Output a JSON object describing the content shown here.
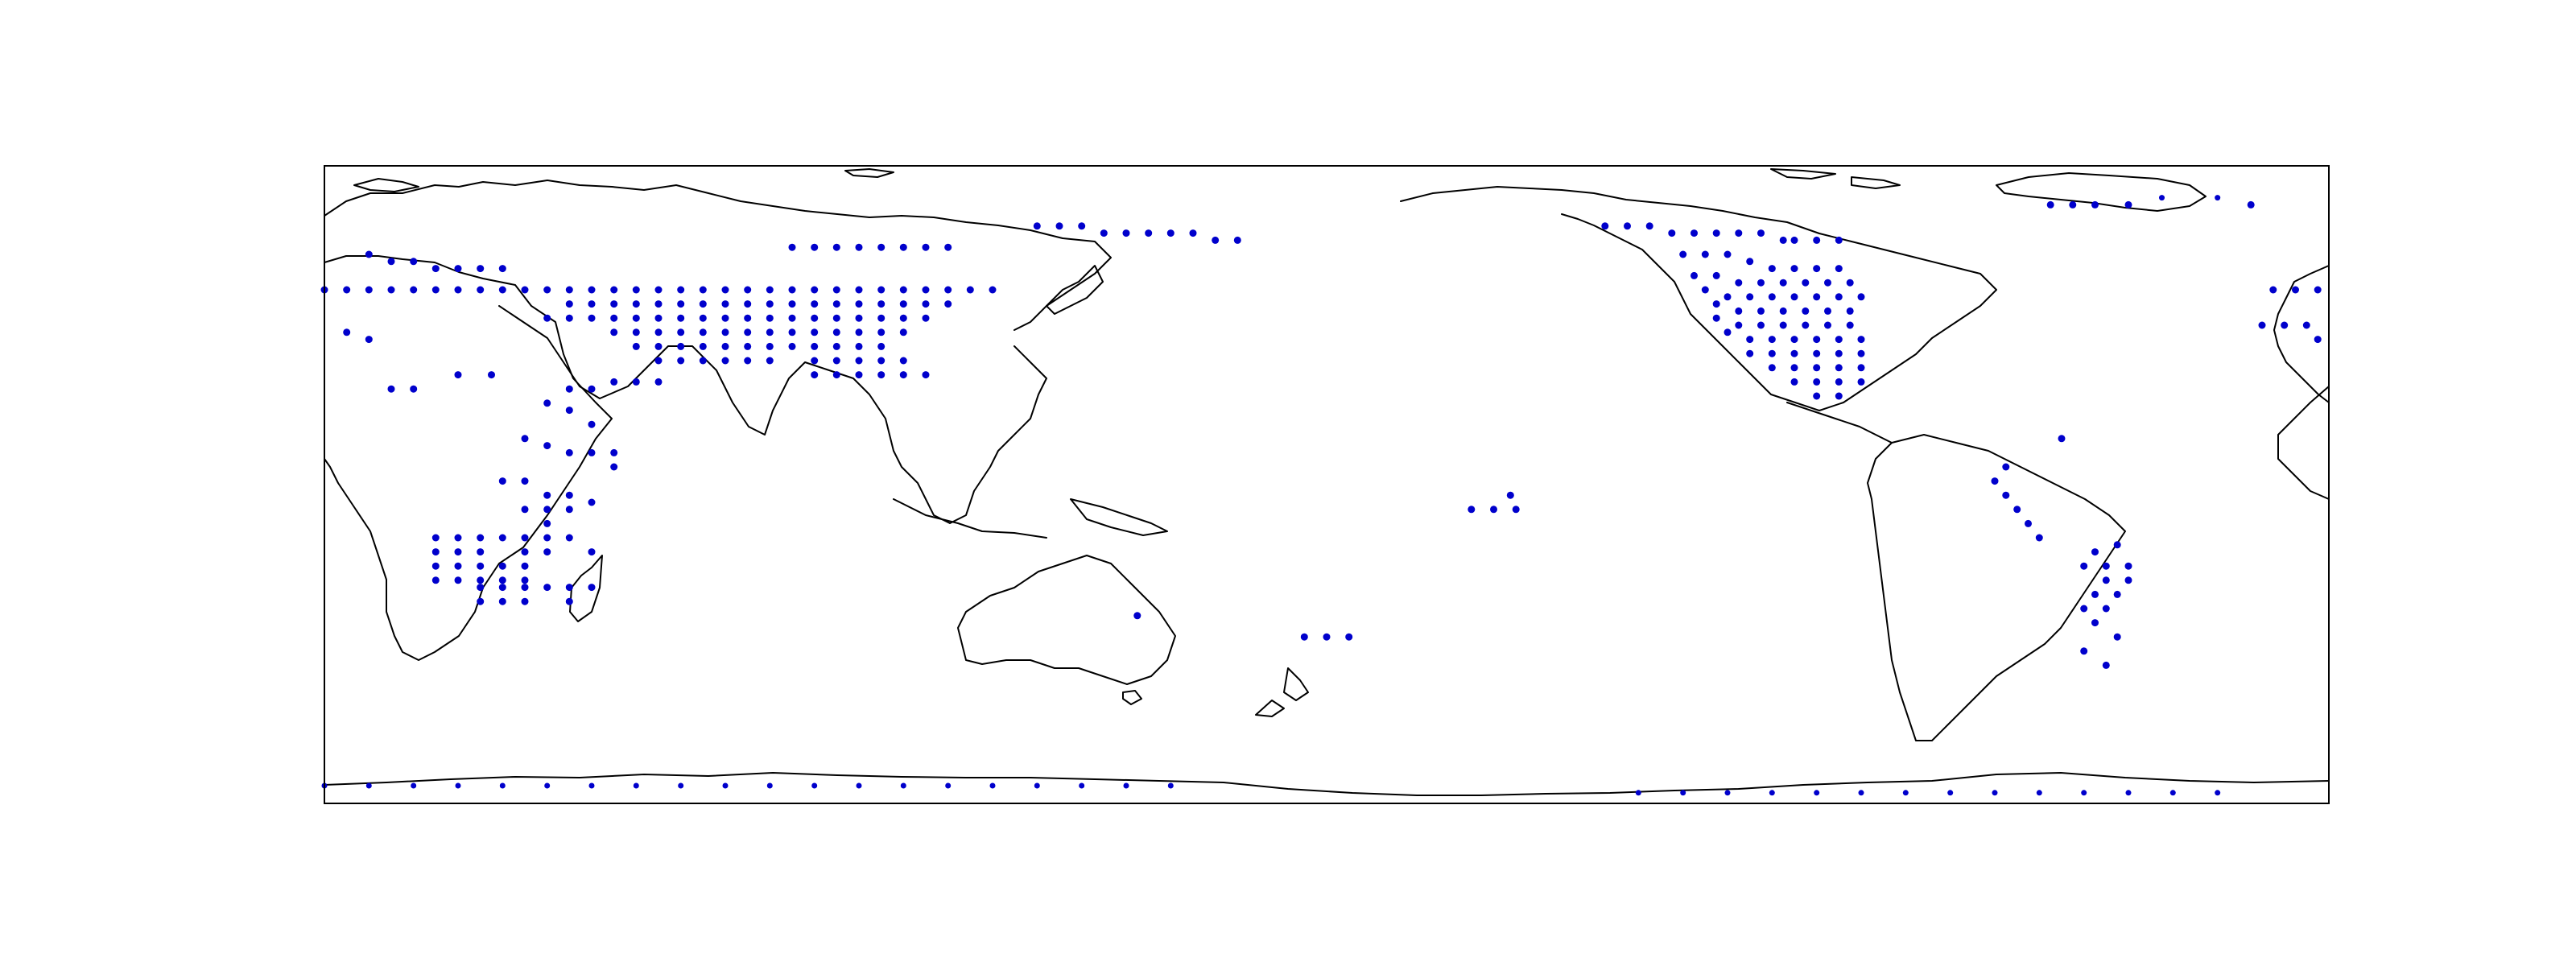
{
  "map": {
    "projection": "plate-carree",
    "central_longitude": 180,
    "lon_range": [
      0,
      360
    ],
    "lat_range": [
      -90,
      90
    ],
    "marker_color": "#0000cc",
    "coastline_color": "#000000",
    "frame_color": "#000000",
    "marker_shape": "filled-circle"
  },
  "points": [
    [
      8,
      65
    ],
    [
      12,
      63
    ],
    [
      16,
      63
    ],
    [
      20,
      61
    ],
    [
      24,
      61
    ],
    [
      28,
      61
    ],
    [
      32,
      61
    ],
    [
      0,
      55
    ],
    [
      4,
      55
    ],
    [
      8,
      55
    ],
    [
      12,
      55
    ],
    [
      16,
      55
    ],
    [
      20,
      55
    ],
    [
      24,
      55
    ],
    [
      28,
      55
    ],
    [
      32,
      55
    ],
    [
      36,
      55
    ],
    [
      40,
      55
    ],
    [
      44,
      55
    ],
    [
      48,
      55
    ],
    [
      52,
      55
    ],
    [
      56,
      55
    ],
    [
      60,
      55
    ],
    [
      64,
      55
    ],
    [
      68,
      55
    ],
    [
      72,
      55
    ],
    [
      76,
      55
    ],
    [
      80,
      55
    ],
    [
      84,
      55
    ],
    [
      88,
      55
    ],
    [
      92,
      55
    ],
    [
      96,
      55
    ],
    [
      100,
      55
    ],
    [
      104,
      55
    ],
    [
      108,
      55
    ],
    [
      112,
      55
    ],
    [
      116,
      55
    ],
    [
      120,
      55
    ],
    [
      44,
      51
    ],
    [
      48,
      51
    ],
    [
      52,
      51
    ],
    [
      56,
      51
    ],
    [
      60,
      51
    ],
    [
      64,
      51
    ],
    [
      68,
      51
    ],
    [
      72,
      51
    ],
    [
      76,
      51
    ],
    [
      80,
      51
    ],
    [
      84,
      51
    ],
    [
      88,
      51
    ],
    [
      92,
      51
    ],
    [
      96,
      51
    ],
    [
      100,
      51
    ],
    [
      104,
      51
    ],
    [
      108,
      51
    ],
    [
      112,
      51
    ],
    [
      40,
      47
    ],
    [
      44,
      47
    ],
    [
      48,
      47
    ],
    [
      52,
      47
    ],
    [
      56,
      47
    ],
    [
      60,
      47
    ],
    [
      64,
      47
    ],
    [
      68,
      47
    ],
    [
      72,
      47
    ],
    [
      76,
      47
    ],
    [
      80,
      47
    ],
    [
      84,
      47
    ],
    [
      88,
      47
    ],
    [
      92,
      47
    ],
    [
      96,
      47
    ],
    [
      100,
      47
    ],
    [
      104,
      47
    ],
    [
      108,
      47
    ],
    [
      52,
      43
    ],
    [
      56,
      43
    ],
    [
      60,
      43
    ],
    [
      64,
      43
    ],
    [
      68,
      43
    ],
    [
      72,
      43
    ],
    [
      76,
      43
    ],
    [
      80,
      43
    ],
    [
      84,
      43
    ],
    [
      88,
      43
    ],
    [
      92,
      43
    ],
    [
      96,
      43
    ],
    [
      100,
      43
    ],
    [
      104,
      43
    ],
    [
      56,
      39
    ],
    [
      60,
      39
    ],
    [
      64,
      39
    ],
    [
      68,
      39
    ],
    [
      72,
      39
    ],
    [
      76,
      39
    ],
    [
      80,
      39
    ],
    [
      84,
      39
    ],
    [
      88,
      39
    ],
    [
      92,
      39
    ],
    [
      96,
      39
    ],
    [
      100,
      39
    ],
    [
      60,
      35
    ],
    [
      64,
      35
    ],
    [
      68,
      35
    ],
    [
      72,
      35
    ],
    [
      76,
      35
    ],
    [
      80,
      35
    ],
    [
      88,
      35
    ],
    [
      92,
      35
    ],
    [
      96,
      35
    ],
    [
      100,
      35
    ],
    [
      104,
      35
    ],
    [
      88,
      31
    ],
    [
      92,
      31
    ],
    [
      96,
      31
    ],
    [
      100,
      31
    ],
    [
      104,
      31
    ],
    [
      108,
      31
    ],
    [
      84,
      67
    ],
    [
      88,
      67
    ],
    [
      92,
      67
    ],
    [
      96,
      67
    ],
    [
      100,
      67
    ],
    [
      104,
      67
    ],
    [
      108,
      67
    ],
    [
      112,
      67
    ],
    [
      128,
      73
    ],
    [
      132,
      73
    ],
    [
      136,
      73
    ],
    [
      140,
      71
    ],
    [
      144,
      71
    ],
    [
      148,
      71
    ],
    [
      152,
      71
    ],
    [
      156,
      71
    ],
    [
      160,
      69
    ],
    [
      164,
      69
    ],
    [
      44,
      27
    ],
    [
      48,
      27
    ],
    [
      40,
      23
    ],
    [
      44,
      21
    ],
    [
      48,
      17
    ],
    [
      36,
      13
    ],
    [
      40,
      11
    ],
    [
      44,
      9
    ],
    [
      48,
      9
    ],
    [
      52,
      9
    ],
    [
      52,
      5
    ],
    [
      32,
      1
    ],
    [
      36,
      1
    ],
    [
      40,
      -3
    ],
    [
      44,
      -3
    ],
    [
      48,
      -5
    ],
    [
      36,
      -7
    ],
    [
      40,
      -7
    ],
    [
      44,
      -7
    ],
    [
      40,
      -11
    ],
    [
      20,
      -15
    ],
    [
      24,
      -15
    ],
    [
      28,
      -15
    ],
    [
      32,
      -15
    ],
    [
      36,
      -15
    ],
    [
      40,
      -15
    ],
    [
      44,
      -15
    ],
    [
      20,
      -19
    ],
    [
      24,
      -19
    ],
    [
      28,
      -19
    ],
    [
      36,
      -19
    ],
    [
      40,
      -19
    ],
    [
      48,
      -19
    ],
    [
      20,
      -23
    ],
    [
      24,
      -23
    ],
    [
      28,
      -23
    ],
    [
      32,
      -23
    ],
    [
      36,
      -23
    ],
    [
      20,
      -27
    ],
    [
      24,
      -27
    ],
    [
      28,
      -27
    ],
    [
      32,
      -27
    ],
    [
      36,
      -27
    ],
    [
      28,
      -29
    ],
    [
      32,
      -29
    ],
    [
      36,
      -29
    ],
    [
      40,
      -29
    ],
    [
      44,
      -29
    ],
    [
      48,
      -29
    ],
    [
      28,
      -33
    ],
    [
      32,
      -33
    ],
    [
      36,
      -33
    ],
    [
      44,
      -33
    ],
    [
      52,
      29
    ],
    [
      56,
      29
    ],
    [
      60,
      29
    ],
    [
      24,
      31
    ],
    [
      30,
      31
    ],
    [
      12,
      27
    ],
    [
      16,
      27
    ],
    [
      8,
      41
    ],
    [
      4,
      43
    ],
    [
      206,
      -7
    ],
    [
      210,
      -7
    ],
    [
      214,
      -7
    ],
    [
      213,
      -3
    ],
    [
      176,
      -43
    ],
    [
      180,
      -43
    ],
    [
      184,
      -43
    ],
    [
      146,
      -37
    ],
    [
      230,
      73
    ],
    [
      234,
      73
    ],
    [
      238,
      73
    ],
    [
      242,
      71
    ],
    [
      246,
      71
    ],
    [
      250,
      71
    ],
    [
      254,
      71
    ],
    [
      258,
      71
    ],
    [
      262,
      69
    ],
    [
      264,
      69
    ],
    [
      268,
      69
    ],
    [
      272,
      69
    ],
    [
      244,
      65
    ],
    [
      248,
      65
    ],
    [
      252,
      65
    ],
    [
      256,
      63
    ],
    [
      260,
      61
    ],
    [
      264,
      61
    ],
    [
      268,
      61
    ],
    [
      272,
      61
    ],
    [
      246,
      59
    ],
    [
      250,
      59
    ],
    [
      254,
      57
    ],
    [
      258,
      57
    ],
    [
      262,
      57
    ],
    [
      266,
      57
    ],
    [
      270,
      57
    ],
    [
      274,
      57
    ],
    [
      248,
      55
    ],
    [
      252,
      53
    ],
    [
      256,
      53
    ],
    [
      260,
      53
    ],
    [
      264,
      53
    ],
    [
      268,
      53
    ],
    [
      272,
      53
    ],
    [
      276,
      53
    ],
    [
      250,
      51
    ],
    [
      254,
      49
    ],
    [
      258,
      49
    ],
    [
      262,
      49
    ],
    [
      266,
      49
    ],
    [
      270,
      49
    ],
    [
      274,
      49
    ],
    [
      250,
      47
    ],
    [
      254,
      45
    ],
    [
      258,
      45
    ],
    [
      262,
      45
    ],
    [
      266,
      45
    ],
    [
      270,
      45
    ],
    [
      274,
      45
    ],
    [
      252,
      43
    ],
    [
      256,
      41
    ],
    [
      260,
      41
    ],
    [
      264,
      41
    ],
    [
      268,
      41
    ],
    [
      272,
      41
    ],
    [
      276,
      41
    ],
    [
      256,
      37
    ],
    [
      260,
      37
    ],
    [
      264,
      37
    ],
    [
      268,
      37
    ],
    [
      272,
      37
    ],
    [
      276,
      37
    ],
    [
      260,
      33
    ],
    [
      264,
      33
    ],
    [
      268,
      33
    ],
    [
      272,
      33
    ],
    [
      276,
      33
    ],
    [
      264,
      29
    ],
    [
      268,
      29
    ],
    [
      272,
      29
    ],
    [
      276,
      29
    ],
    [
      268,
      25
    ],
    [
      272,
      25
    ],
    [
      312,
      13
    ],
    [
      302,
      5
    ],
    [
      300,
      1
    ],
    [
      302,
      -3
    ],
    [
      304,
      -7
    ],
    [
      306,
      -11
    ],
    [
      308,
      -15
    ],
    [
      322,
      -17
    ],
    [
      318,
      -19
    ],
    [
      316,
      -23
    ],
    [
      320,
      -23
    ],
    [
      324,
      -23
    ],
    [
      324,
      -27
    ],
    [
      320,
      -27
    ],
    [
      318,
      -31
    ],
    [
      322,
      -31
    ],
    [
      316,
      -35
    ],
    [
      320,
      -35
    ],
    [
      318,
      -39
    ],
    [
      322,
      -43
    ],
    [
      316,
      -47
    ],
    [
      320,
      -51
    ],
    [
      350,
      55
    ],
    [
      354,
      55
    ],
    [
      358,
      55
    ],
    [
      348,
      45
    ],
    [
      352,
      45
    ],
    [
      356,
      45
    ],
    [
      358,
      41
    ],
    [
      310,
      79
    ],
    [
      314,
      79
    ],
    [
      318,
      79
    ],
    [
      324,
      79
    ],
    [
      330,
      81
    ],
    [
      340,
      81
    ],
    [
      346,
      79
    ],
    [
      0,
      -85
    ],
    [
      8,
      -85
    ],
    [
      16,
      -85
    ],
    [
      24,
      -85
    ],
    [
      32,
      -85
    ],
    [
      40,
      -85
    ],
    [
      48,
      -85
    ],
    [
      56,
      -85
    ],
    [
      64,
      -85
    ],
    [
      72,
      -85
    ],
    [
      80,
      -85
    ],
    [
      88,
      -85
    ],
    [
      96,
      -85
    ],
    [
      104,
      -85
    ],
    [
      112,
      -85
    ],
    [
      120,
      -85
    ],
    [
      128,
      -85
    ],
    [
      136,
      -85
    ],
    [
      144,
      -85
    ],
    [
      152,
      -85
    ],
    [
      236,
      -87
    ],
    [
      244,
      -87
    ],
    [
      252,
      -87
    ],
    [
      260,
      -87
    ],
    [
      268,
      -87
    ],
    [
      276,
      -87
    ],
    [
      284,
      -87
    ],
    [
      292,
      -87
    ],
    [
      300,
      -87
    ],
    [
      308,
      -87
    ],
    [
      316,
      -87
    ],
    [
      324,
      -87
    ],
    [
      332,
      -87
    ],
    [
      340,
      -87
    ]
  ]
}
